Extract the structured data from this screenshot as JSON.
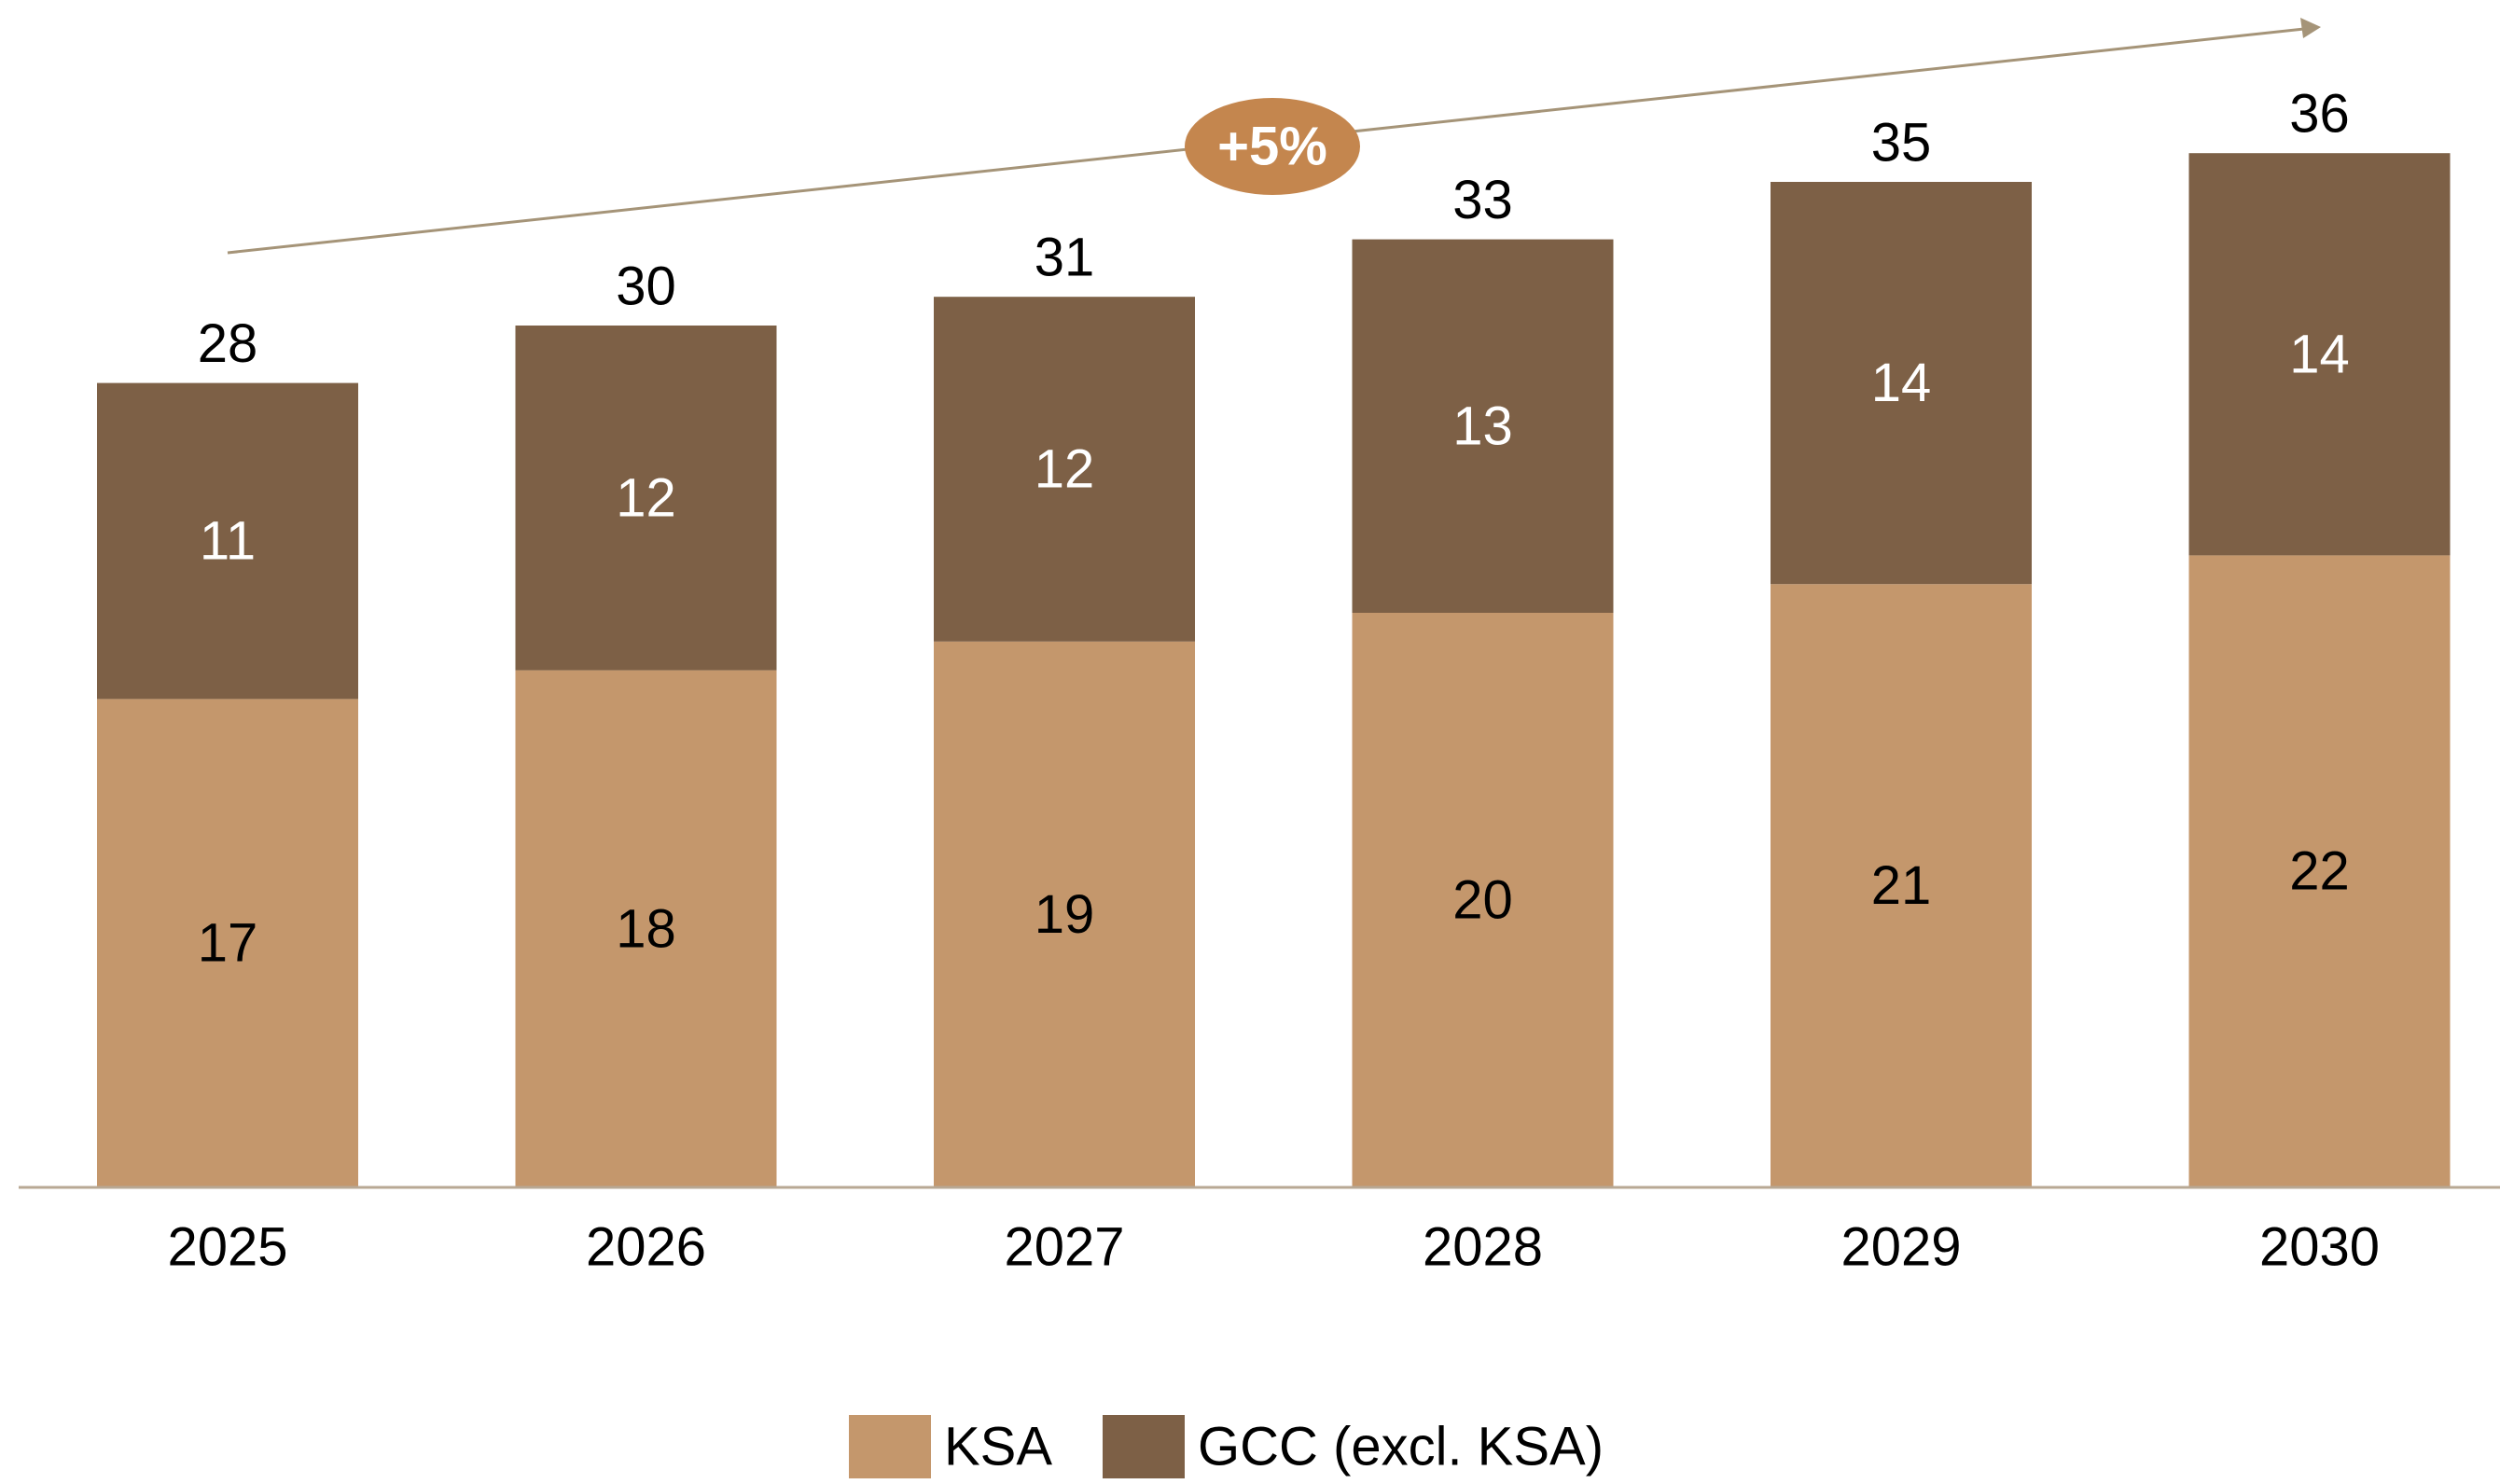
{
  "chart_data": {
    "type": "bar",
    "stacked": true,
    "categories": [
      "2025",
      "2026",
      "2027",
      "2028",
      "2029",
      "2030"
    ],
    "series": [
      {
        "name": "KSA",
        "values": [
          17,
          18,
          19,
          20,
          21,
          22
        ],
        "color": "#C4976C"
      },
      {
        "name": "GCC (excl. KSA)",
        "values": [
          11,
          12,
          12,
          13,
          14,
          14
        ],
        "color": "#7D6046"
      }
    ],
    "totals": [
      28,
      30,
      31,
      33,
      35,
      36
    ],
    "annotation": {
      "label": "+5%",
      "color": "#C4864E",
      "arrow_color": "#A59478"
    },
    "ylim": [
      0,
      36
    ],
    "grid": false,
    "legend_position": "bottom-center",
    "axis_color": "#B8A894"
  }
}
